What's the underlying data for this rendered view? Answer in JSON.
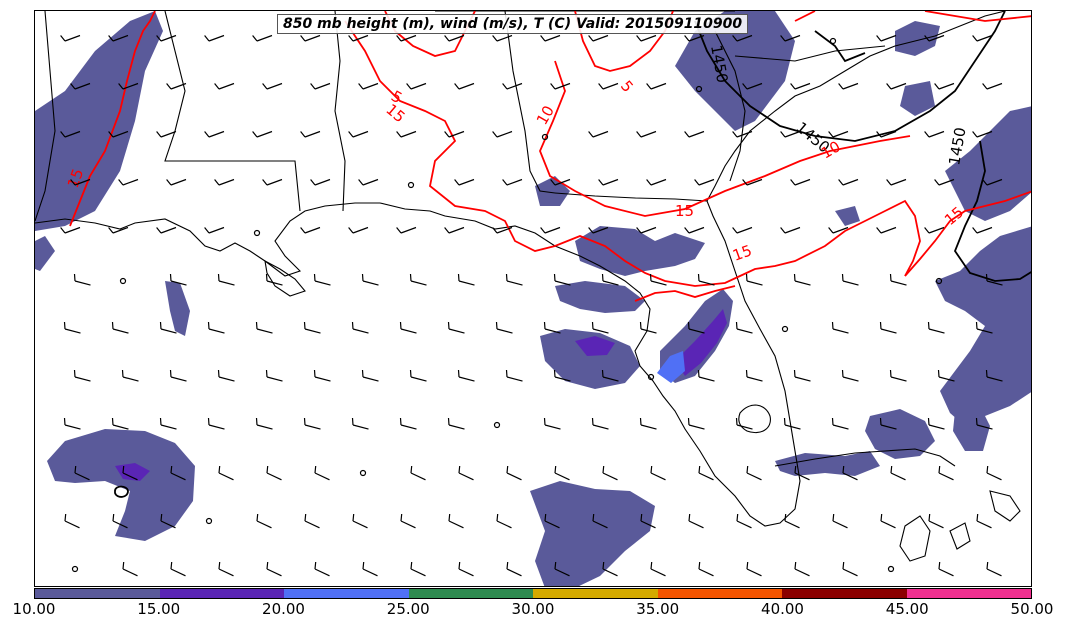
{
  "title": "850 mb height (m), wind (m/s), T (C) Valid: 201509110900",
  "contour_labels": {
    "height": [
      "1450",
      "1450",
      "1450"
    ],
    "temperature": [
      "15",
      "15",
      "15",
      "15",
      "15",
      "10",
      "10",
      "5",
      "5"
    ]
  },
  "colorbar": {
    "colors": [
      "#5a5a9a",
      "#5a25b5",
      "#5070f5",
      "#2e8b50",
      "#d4aa00",
      "#f45500",
      "#8b0000",
      "#f03090"
    ],
    "ticks": [
      "10.00",
      "15.00",
      "20.00",
      "25.00",
      "30.00",
      "35.00",
      "40.00",
      "45.00",
      "50.00"
    ]
  },
  "colors": {
    "shading": "#5a5a9a",
    "shading_strong": "#5a25b5",
    "shading_max": "#5070f5",
    "temperature_contour": "#ff0000",
    "height_contour": "#000000",
    "coastline": "#000000"
  }
}
